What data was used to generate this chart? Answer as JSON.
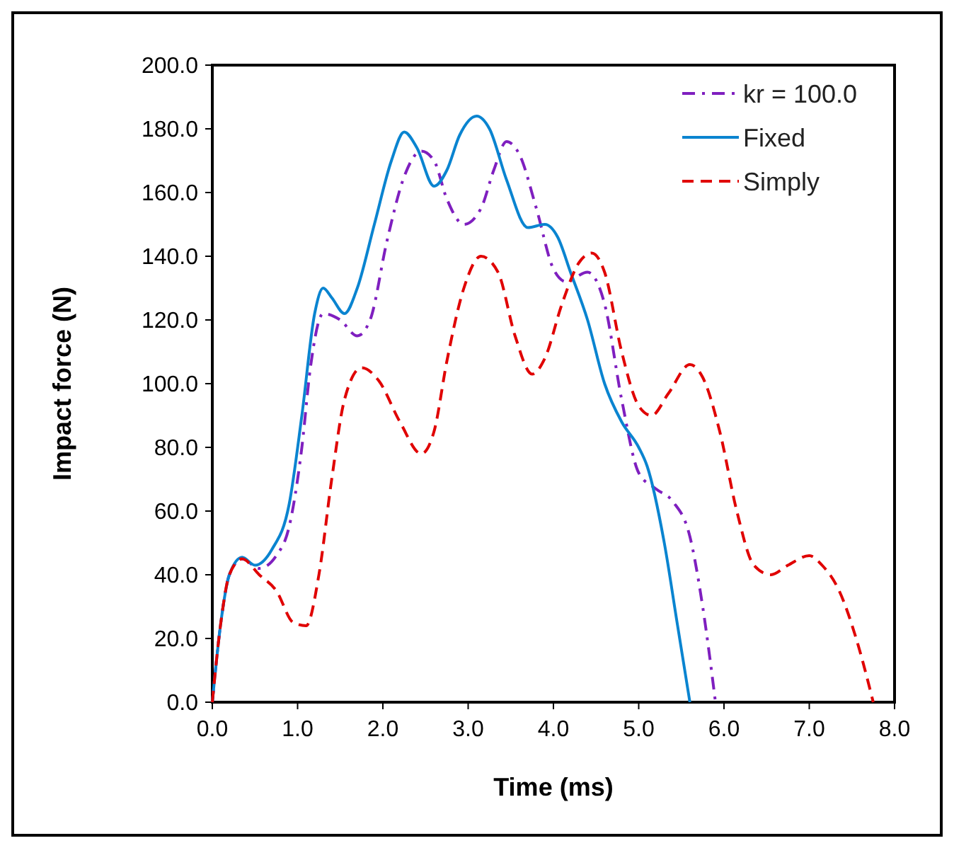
{
  "chart_data": {
    "type": "line",
    "xlabel": "Time (ms)",
    "ylabel": "Impact force (N)",
    "xlim": [
      0,
      8
    ],
    "ylim": [
      0,
      200
    ],
    "xticks": [
      {
        "value": 0,
        "label": "0.0"
      },
      {
        "value": 1,
        "label": "1.0"
      },
      {
        "value": 2,
        "label": "2.0"
      },
      {
        "value": 3,
        "label": "3.0"
      },
      {
        "value": 4,
        "label": "4.0"
      },
      {
        "value": 5,
        "label": "5.0"
      },
      {
        "value": 6,
        "label": "6.0"
      },
      {
        "value": 7,
        "label": "7.0"
      },
      {
        "value": 8,
        "label": "8.0"
      }
    ],
    "yticks": [
      {
        "value": 0,
        "label": "0.0"
      },
      {
        "value": 20,
        "label": "20.0"
      },
      {
        "value": 40,
        "label": "40.0"
      },
      {
        "value": 60,
        "label": "60.0"
      },
      {
        "value": 80,
        "label": "80.0"
      },
      {
        "value": 100,
        "label": "100.0"
      },
      {
        "value": 120,
        "label": "120.0"
      },
      {
        "value": 140,
        "label": "140.0"
      },
      {
        "value": 160,
        "label": "160.0"
      },
      {
        "value": 180,
        "label": "180.0"
      },
      {
        "value": 200,
        "label": "200.0"
      }
    ],
    "grid": false,
    "legend": "top right",
    "marker": "none",
    "series": [
      {
        "name": "kr = 100.0",
        "color": "#7f1fbf",
        "line_style": "dashdot",
        "x": [
          0,
          0.1,
          0.2,
          0.35,
          0.55,
          0.75,
          0.9,
          1.05,
          1.15,
          1.3,
          1.5,
          1.7,
          1.85,
          2.05,
          2.25,
          2.45,
          2.6,
          2.75,
          2.95,
          3.15,
          3.3,
          3.45,
          3.6,
          3.8,
          4.0,
          4.15,
          4.4,
          4.6,
          4.8,
          5.0,
          5.2,
          5.4,
          5.6,
          5.75,
          5.9
        ],
        "values": [
          0,
          25,
          40,
          45,
          42,
          46,
          55,
          80,
          105,
          122,
          120,
          115,
          120,
          145,
          165,
          173,
          170,
          158,
          150,
          155,
          167,
          176,
          172,
          155,
          136,
          132,
          135,
          125,
          95,
          72,
          67,
          63,
          52,
          30,
          0
        ]
      },
      {
        "name": "Fixed",
        "color": "#0a84d0",
        "line_style": "solid",
        "x": [
          0,
          0.1,
          0.2,
          0.35,
          0.5,
          0.7,
          0.9,
          1.05,
          1.2,
          1.3,
          1.4,
          1.55,
          1.7,
          1.9,
          2.1,
          2.25,
          2.4,
          2.6,
          2.75,
          2.9,
          3.1,
          3.25,
          3.45,
          3.7,
          3.9,
          4.05,
          4.2,
          4.4,
          4.6,
          4.8,
          5.0,
          5.1,
          5.3,
          5.45,
          5.6
        ],
        "values": [
          0,
          25,
          40,
          45.5,
          43,
          48,
          62,
          90,
          122,
          130,
          127,
          122,
          130,
          150,
          170,
          179,
          174,
          162,
          167,
          178,
          184,
          180,
          164,
          149,
          150,
          146,
          135,
          120,
          100,
          88,
          80,
          74,
          50,
          25,
          0
        ]
      },
      {
        "name": "Simply",
        "color": "#e00000",
        "line_style": "dashed",
        "x": [
          0,
          0.1,
          0.2,
          0.35,
          0.55,
          0.75,
          0.95,
          1.1,
          1.25,
          1.4,
          1.55,
          1.75,
          1.95,
          2.2,
          2.45,
          2.6,
          2.75,
          2.95,
          3.15,
          3.35,
          3.55,
          3.75,
          3.9,
          4.1,
          4.3,
          4.45,
          4.6,
          4.8,
          5.0,
          5.15,
          5.35,
          5.6,
          5.75,
          5.95,
          6.15,
          6.35,
          6.55,
          6.75,
          7.0,
          7.15,
          7.35,
          7.55,
          7.75
        ],
        "values": [
          0,
          25,
          40,
          45,
          40,
          35,
          25,
          24,
          40,
          70,
          95,
          105,
          101,
          88,
          78,
          85,
          107,
          130,
          140,
          135,
          115,
          103,
          108,
          125,
          138,
          141,
          135,
          110,
          93,
          90,
          97,
          106,
          102,
          85,
          60,
          43,
          40,
          43,
          46,
          43,
          35,
          20,
          0
        ]
      }
    ]
  }
}
